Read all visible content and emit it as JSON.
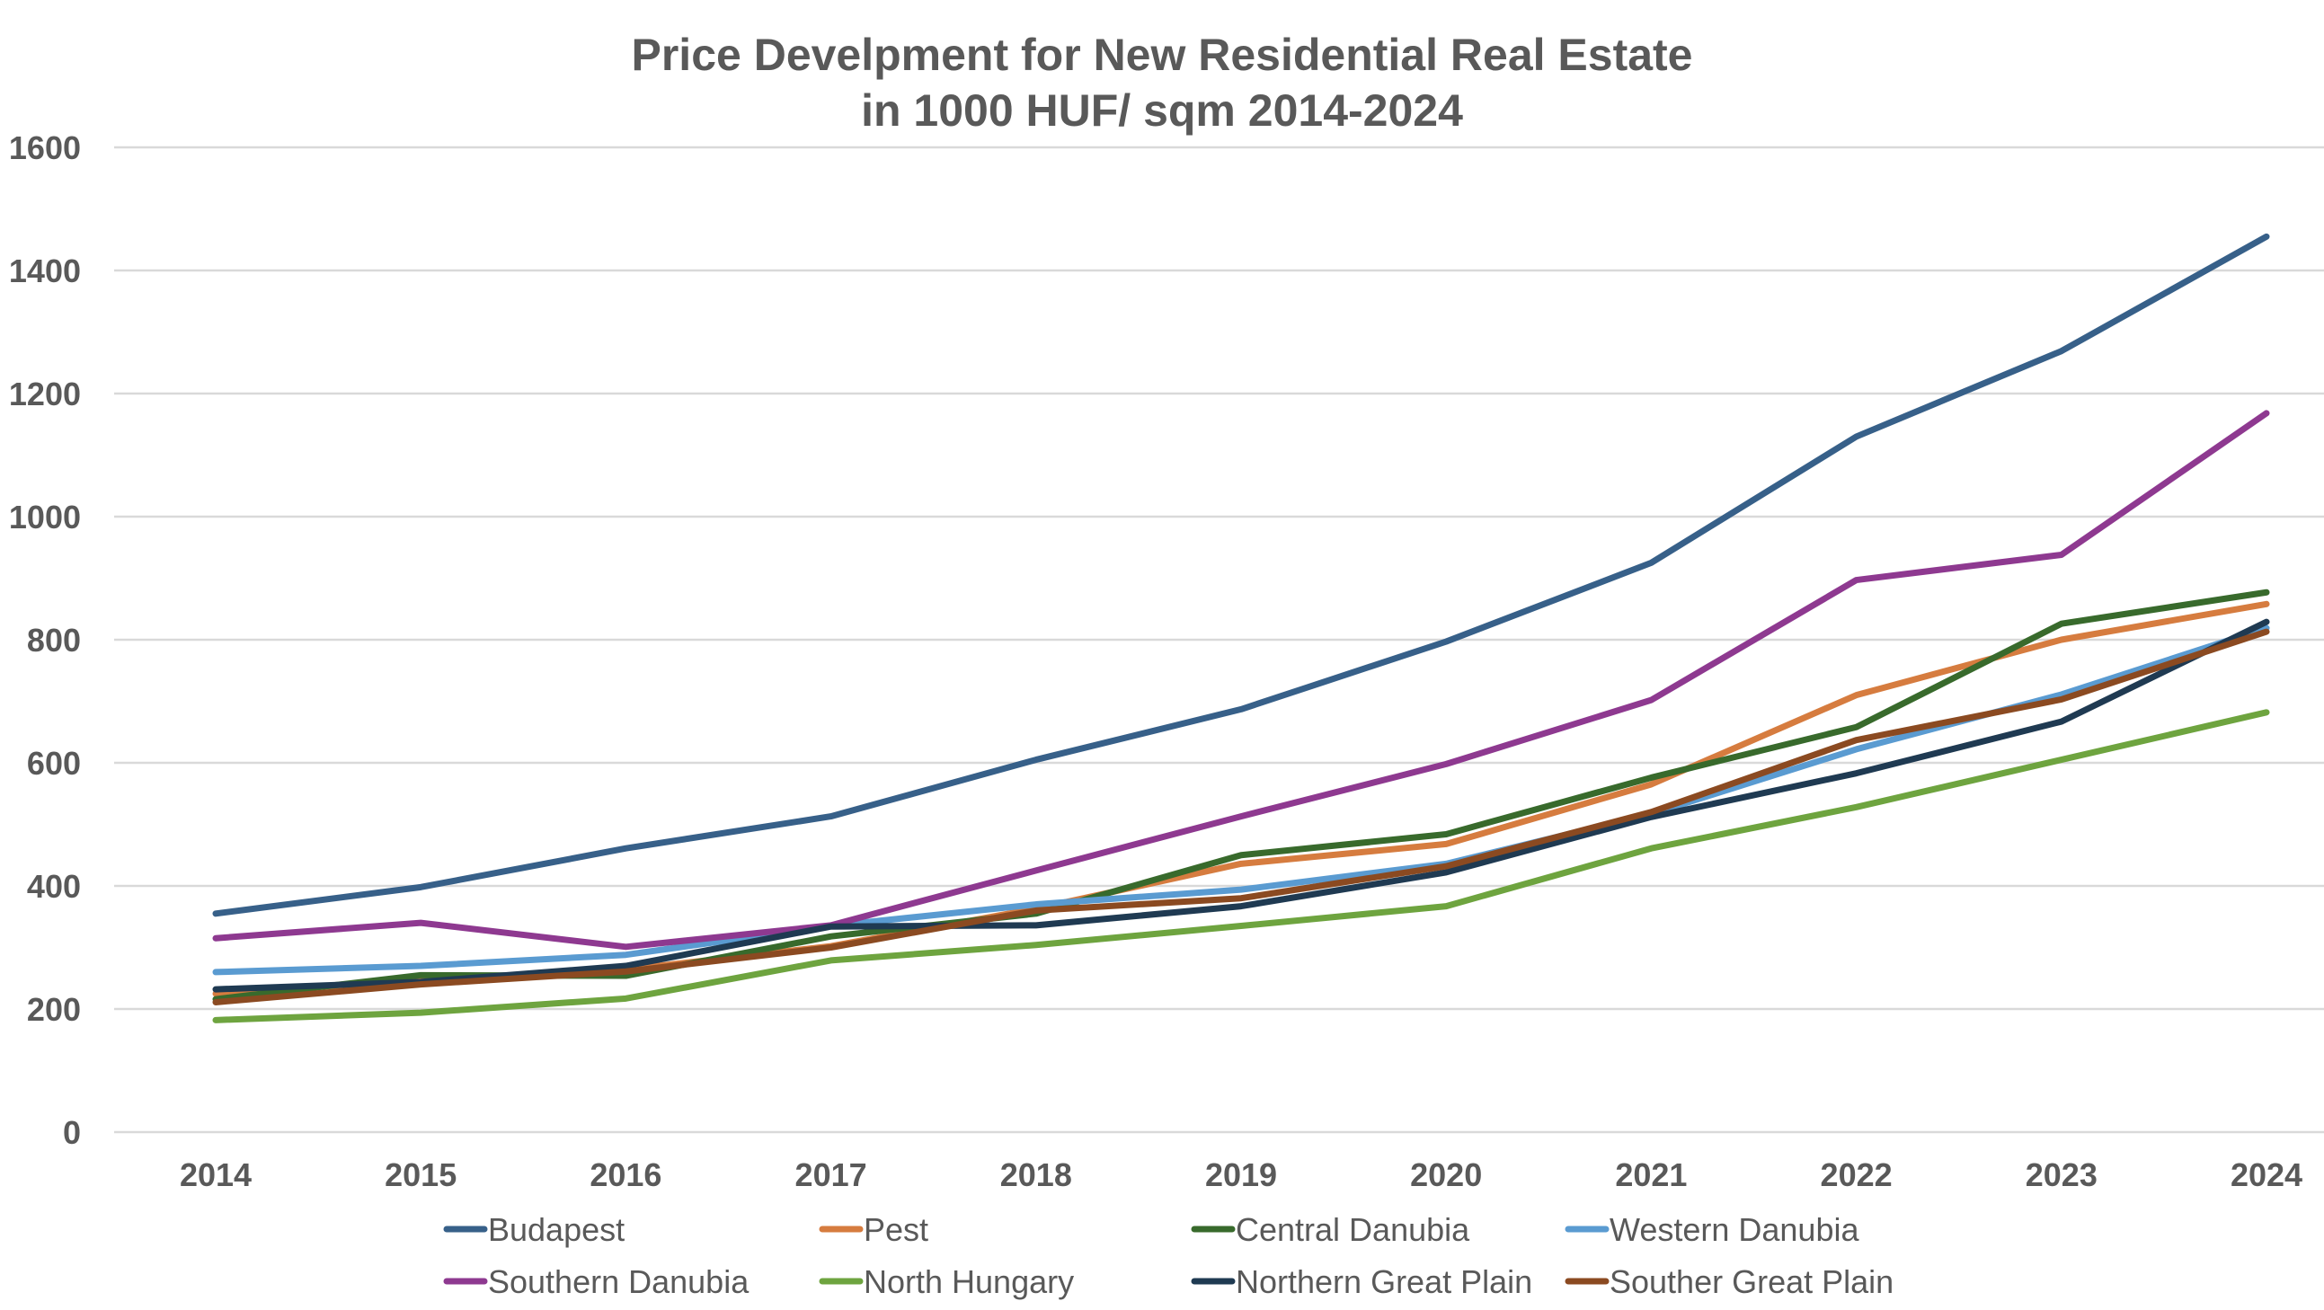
{
  "chart_data": {
    "type": "line",
    "title": [
      "Price Develpment for New Residential Real Estate",
      "in 1000 HUF/ sqm 2014-2024"
    ],
    "xlabel": "",
    "ylabel": "",
    "categories": [
      "2014",
      "2015",
      "2016",
      "2017",
      "2018",
      "2019",
      "2020",
      "2021",
      "2022",
      "2023",
      "2024"
    ],
    "ylim": [
      0,
      1600
    ],
    "yticks": [
      0,
      200,
      400,
      600,
      800,
      1000,
      1200,
      1400,
      1600
    ],
    "grid": true,
    "legend_position": "bottom",
    "series": [
      {
        "name": "Budapest",
        "color": "#376089",
        "values": [
          355,
          398,
          461,
          513,
          605,
          687,
          797,
          925,
          1130,
          1269,
          1455
        ]
      },
      {
        "name": "Pest",
        "color": "#D67C3F",
        "values": [
          225,
          247,
          264,
          302,
          363,
          436,
          468,
          565,
          710,
          800,
          858
        ]
      },
      {
        "name": "Central Danubia",
        "color": "#386A2C",
        "values": [
          216,
          255,
          254,
          318,
          355,
          450,
          484,
          576,
          658,
          826,
          877
        ]
      },
      {
        "name": "Western Danubia",
        "color": "#5A9BD1",
        "values": [
          260,
          270,
          288,
          335,
          370,
          394,
          436,
          517,
          622,
          711,
          819
        ]
      },
      {
        "name": "Southern Danubia",
        "color": "#8E3990",
        "values": [
          315,
          340,
          301,
          336,
          425,
          513,
          598,
          702,
          897,
          938,
          1168
        ]
      },
      {
        "name": "North Hungary",
        "color": "#6EA43F",
        "values": [
          182,
          194,
          217,
          279,
          304,
          335,
          367,
          461,
          528,
          605,
          682
        ]
      },
      {
        "name": "Northern Great Plain",
        "color": "#1F3A52",
        "values": [
          232,
          244,
          270,
          334,
          336,
          367,
          422,
          512,
          583,
          667,
          829
        ]
      },
      {
        "name": "Souther Great Plain",
        "color": "#8B4A21",
        "values": [
          211,
          240,
          261,
          300,
          360,
          380,
          432,
          520,
          637,
          703,
          813
        ]
      }
    ]
  }
}
